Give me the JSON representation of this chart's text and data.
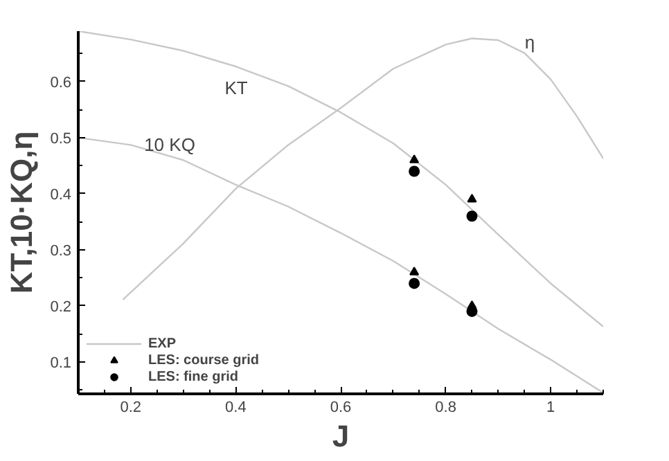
{
  "chart_data": {
    "type": "line",
    "xlabel": "J",
    "ylabel": "KT,10·KQ,η",
    "xlim": [
      0.1,
      1.1
    ],
    "ylim": [
      0.043,
      0.69
    ],
    "xticks": [
      0.2,
      0.4,
      0.6,
      0.8,
      {
        "value": 1.0,
        "label": "1"
      }
    ],
    "yticks": [
      0.1,
      0.2,
      0.3,
      0.4,
      0.5,
      0.6
    ],
    "grid": false,
    "legend": "bottom left",
    "line_style": "solid",
    "series": [
      {
        "name": "EXP",
        "color": "#c8c8c8",
        "x": [
          0.1,
          0.2,
          0.3,
          0.4,
          0.5,
          0.6,
          0.7,
          0.8,
          0.9,
          1.0,
          1.1
        ],
        "values": [
          0.69,
          0.675,
          0.655,
          0.627,
          0.592,
          0.545,
          0.49,
          0.416,
          0.327,
          0.24,
          0.163
        ]
      },
      {
        "color": "#c8c8c8",
        "x": [
          0.1,
          0.2,
          0.3,
          0.4,
          0.5,
          0.6,
          0.7,
          0.8,
          0.9,
          1.0,
          1.1
        ],
        "values": [
          0.5,
          0.487,
          0.46,
          0.416,
          0.377,
          0.33,
          0.28,
          0.221,
          0.159,
          0.104,
          0.045
        ]
      },
      {
        "color": "#c8c8c8",
        "x": [
          0.185,
          0.3,
          0.4,
          0.5,
          0.6,
          0.7,
          0.8,
          0.85,
          0.9,
          0.95,
          1.0,
          1.05,
          1.1
        ],
        "values": [
          0.211,
          0.311,
          0.409,
          0.487,
          0.553,
          0.623,
          0.666,
          0.677,
          0.674,
          0.651,
          0.604,
          0.538,
          0.463
        ]
      },
      {
        "name": "LES: course grid",
        "type": "scatter",
        "marker": "triangle",
        "color": "#000000",
        "x": [
          0.74,
          0.85,
          0.74,
          0.85
        ],
        "values": [
          0.46,
          0.39,
          0.26,
          0.2
        ]
      },
      {
        "name": "LES: fine grid",
        "type": "scatter",
        "marker": "circle",
        "color": "#000000",
        "x": [
          0.74,
          0.85,
          0.74,
          0.85
        ],
        "values": [
          0.44,
          0.36,
          0.24,
          0.19
        ]
      }
    ],
    "annotations": [
      "KT",
      "10 KQ",
      "η"
    ]
  }
}
